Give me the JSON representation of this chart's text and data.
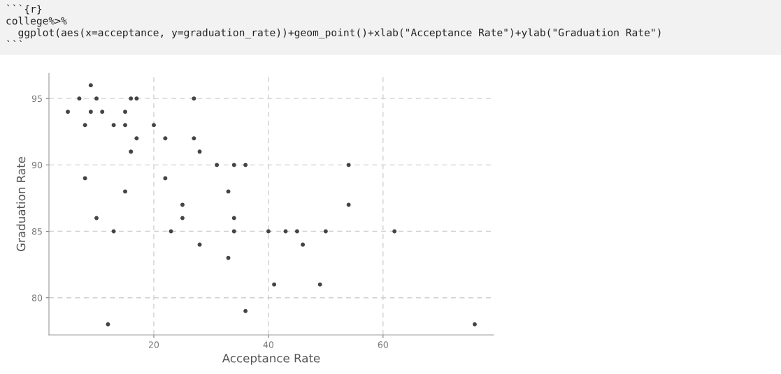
{
  "chart_data": {
    "type": "scatter",
    "xlabel": "Acceptance Rate",
    "ylabel": "Graduation Rate",
    "annotations": [
      "```{r}",
      "college%>%",
      "  ggplot(aes(x=acceptance, y=graduation_rate))+geom_point()+xlab(\"Acceptance Rate\")+ylab(\"Graduation Rate\")",
      "```"
    ],
    "x": [
      5,
      7,
      9,
      10,
      8,
      9,
      11,
      8,
      10,
      13,
      13,
      12,
      15,
      15,
      15,
      16,
      17,
      16,
      17,
      20,
      22,
      22,
      25,
      25,
      23,
      27,
      27,
      28,
      28,
      31,
      34,
      36,
      33,
      34,
      34,
      33,
      36,
      40,
      41,
      43,
      45,
      46,
      49,
      50,
      54,
      54,
      62,
      76
    ],
    "values": [
      94,
      95,
      96,
      95,
      93,
      94,
      94,
      89,
      86,
      93,
      85,
      78,
      94,
      93,
      88,
      95,
      95,
      91,
      92,
      93,
      92,
      89,
      87,
      86,
      85,
      95,
      92,
      91,
      84,
      90,
      90,
      90,
      88,
      86,
      85,
      83,
      79,
      85,
      81,
      85,
      85,
      84,
      81,
      85,
      90,
      87,
      85,
      78
    ],
    "color": "#444444",
    "marker": "circle",
    "xlim": [
      1.7,
      79.3
    ],
    "ylim": [
      77.2,
      96.9
    ],
    "xticks": [
      20,
      40,
      60
    ],
    "yticks": [
      80,
      85,
      90,
      95
    ],
    "grid": true,
    "legend": false
  }
}
